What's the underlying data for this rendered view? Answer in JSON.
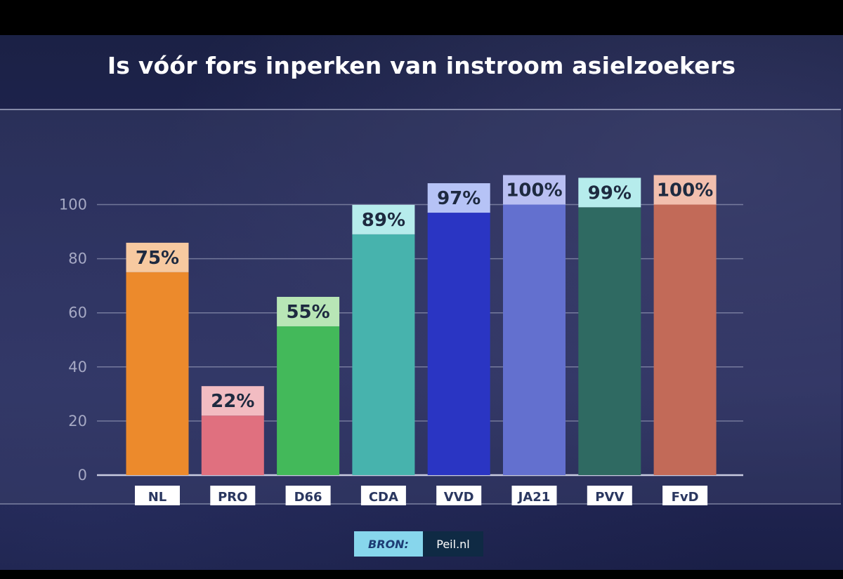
{
  "title": "Is vóór fors inperken van instroom asielzoekers",
  "source": {
    "label": "BRON:",
    "value": "Peil.nl"
  },
  "chart_data": {
    "type": "bar",
    "title": "Is vóór fors inperken van instroom asielzoekers",
    "xlabel": "",
    "ylabel": "",
    "ylim": [
      0,
      110
    ],
    "yticks": [
      0,
      20,
      40,
      60,
      80,
      100
    ],
    "grid": true,
    "categories": [
      "NL",
      "PRO",
      "D66",
      "CDA",
      "VVD",
      "JA21",
      "PVV",
      "FvD"
    ],
    "values": [
      75,
      22,
      55,
      89,
      97,
      100,
      99,
      100
    ],
    "labels": [
      "75%",
      "22%",
      "55%",
      "89%",
      "97%",
      "100%",
      "99%",
      "100%"
    ],
    "colors": [
      "#ec8a2c",
      "#e0707f",
      "#43b95a",
      "#47b3ad",
      "#2a35c3",
      "#6370cf",
      "#2f6a62",
      "#c26a58"
    ],
    "label_bg_colors": [
      "#f7c9a0",
      "#f2bcc2",
      "#b8e6b6",
      "#b6ecec",
      "#b6c3f6",
      "#b9bff2",
      "#b6ecec",
      "#f2bfae"
    ]
  }
}
